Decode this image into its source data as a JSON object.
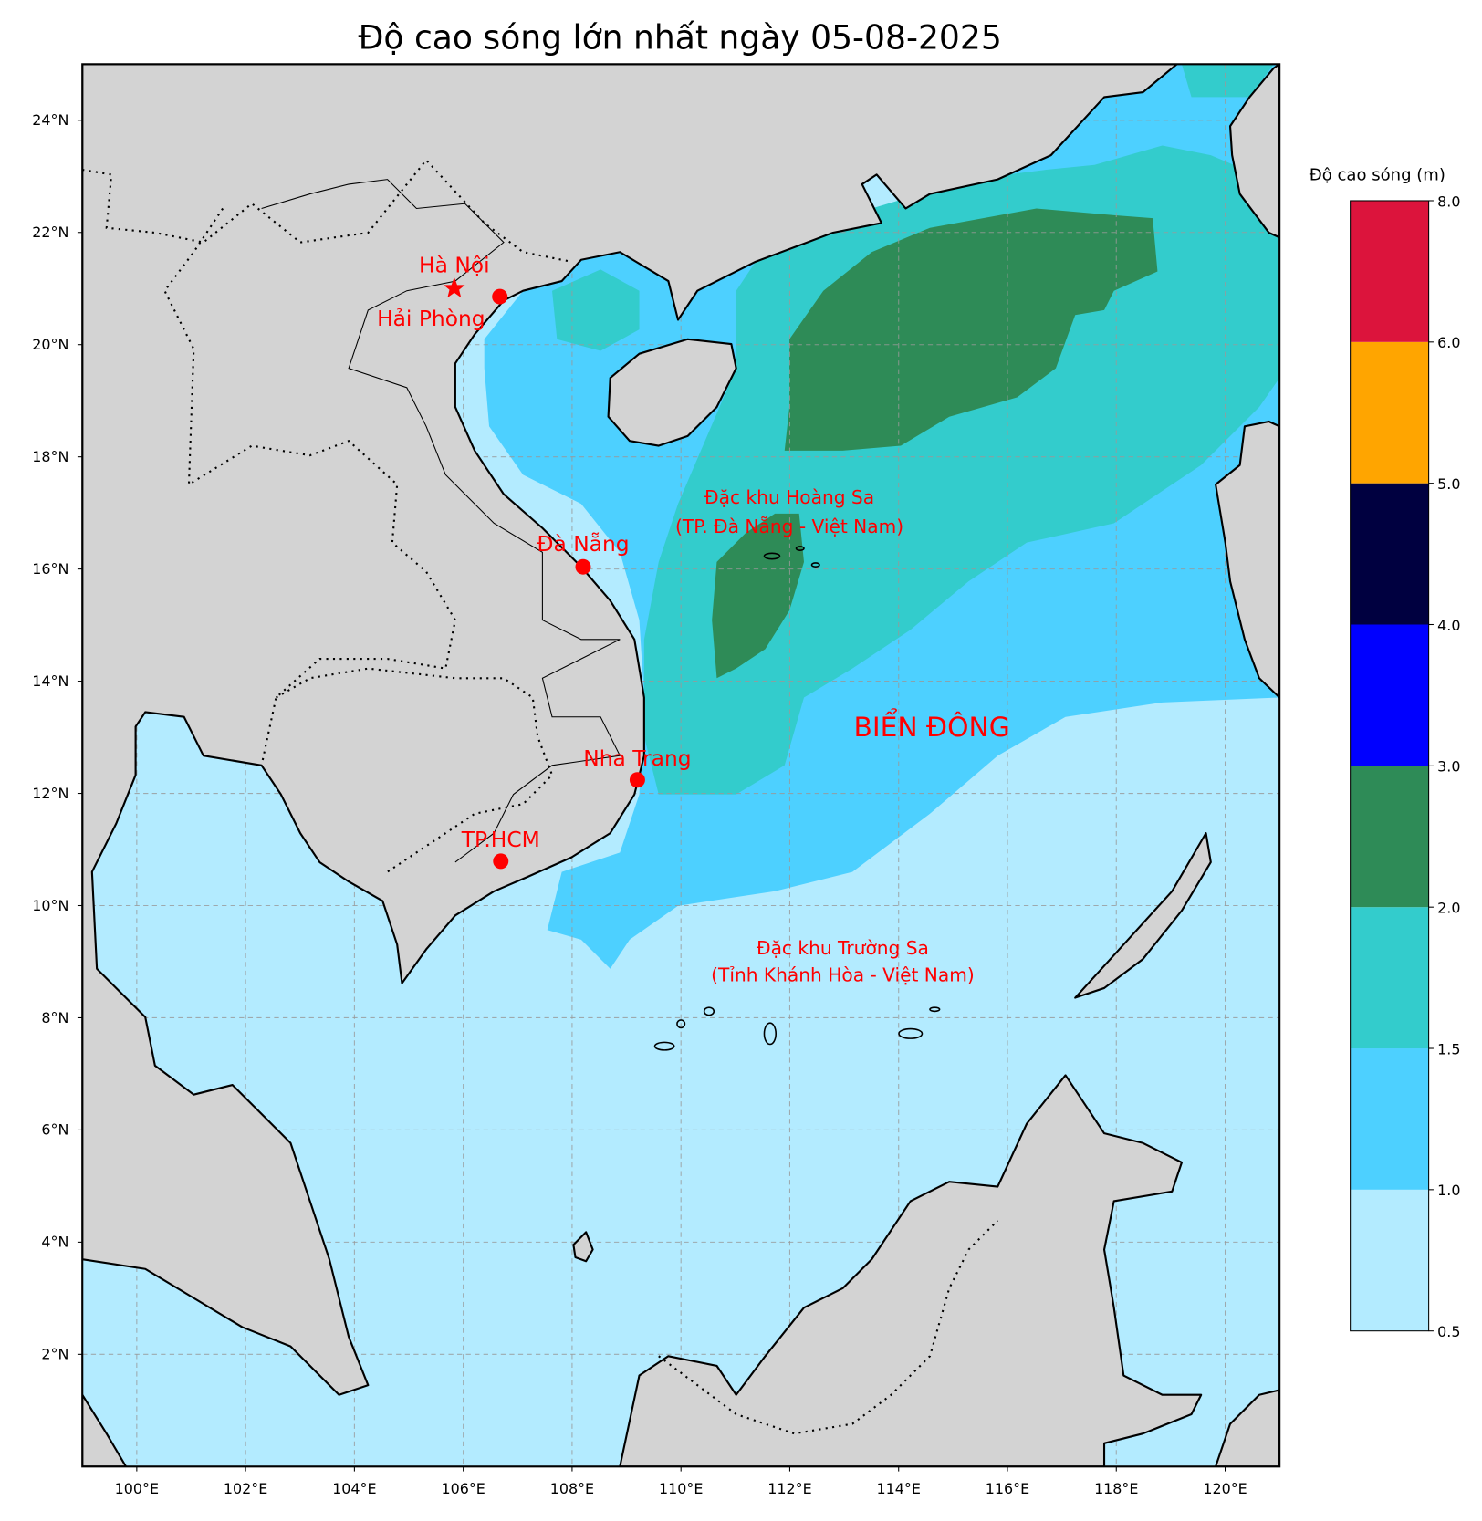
{
  "title": "Độ cao sóng lớn nhất ngày 05-08-2025",
  "axes": {
    "lon_labels": [
      "100°E",
      "102°E",
      "104°E",
      "106°E",
      "108°E",
      "110°E",
      "112°E",
      "114°E",
      "116°E",
      "118°E",
      "120°E"
    ],
    "lat_labels": [
      "2°N",
      "4°N",
      "6°N",
      "8°N",
      "10°N",
      "12°N",
      "14°N",
      "16°N",
      "18°N",
      "20°N",
      "22°N",
      "24°N"
    ],
    "lon_range": [
      99,
      121
    ],
    "lat_range": [
      0,
      25
    ]
  },
  "cities": {
    "hanoi": "Hà Nội",
    "haiphong": "Hải Phòng",
    "danang": "Đà Nẵng",
    "nhatrang": "Nha Trang",
    "tphcm": "TP.HCM"
  },
  "labels": {
    "hoangsa_1": "Đặc khu Hoàng Sa",
    "hoangsa_2": "(TP. Đà Nẵng - Việt Nam)",
    "truongsa_1": "Đặc khu Trường Sa",
    "truongsa_2": "(Tỉnh Khánh Hòa - Việt Nam)",
    "sea": "BIỂN ĐÔNG"
  },
  "colorbar": {
    "title": "Độ cao sóng (m)",
    "ticks": [
      "0.5",
      "1.0",
      "1.5",
      "2.0",
      "3.0",
      "4.0",
      "5.0",
      "6.0",
      "8.0"
    ],
    "colors": [
      "#b3ebff",
      "#4dd0ff",
      "#33cccc",
      "#2e8b57",
      "#0000ff",
      "#000040",
      "#ffa500",
      "#dc143c"
    ]
  }
}
